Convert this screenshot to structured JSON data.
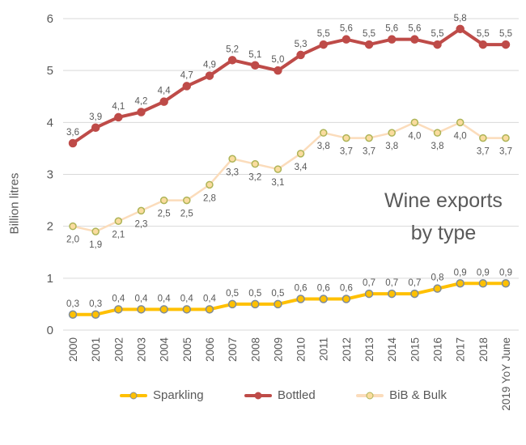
{
  "chart_data": {
    "type": "line",
    "title": "Wine exports by type",
    "title_lines": [
      "Wine exports",
      "by type"
    ],
    "ylabel": "Billion litres",
    "xlabel": "",
    "ylim": [
      0,
      6
    ],
    "yticks": [
      0,
      1,
      2,
      3,
      4,
      5,
      6
    ],
    "grid": "horizontal",
    "legend_position": "bottom",
    "decimal_separator": ",",
    "categories": [
      "2000",
      "2001",
      "2002",
      "2003",
      "2004",
      "2005",
      "2006",
      "2007",
      "2008",
      "2009",
      "2010",
      "2011",
      "2012",
      "2013",
      "2014",
      "2015",
      "2016",
      "2017",
      "2018",
      "2019 YoY June"
    ],
    "series": [
      {
        "name": "Sparkling",
        "color": "#FFC000",
        "marker_fill": "#FFC000",
        "marker_stroke": "#7F8C99",
        "line_width": 4,
        "marker_radius": 4.5,
        "label_position": "above",
        "values": [
          0.3,
          0.3,
          0.4,
          0.4,
          0.4,
          0.4,
          0.4,
          0.5,
          0.5,
          0.5,
          0.6,
          0.6,
          0.6,
          0.7,
          0.7,
          0.7,
          0.8,
          0.9,
          0.9,
          0.9
        ]
      },
      {
        "name": "Bottled",
        "color": "#BE4B48",
        "marker_fill": "#BE4B48",
        "marker_stroke": "#BE4B48",
        "line_width": 4,
        "marker_radius": 4.5,
        "label_position": "above",
        "values": [
          3.6,
          3.9,
          4.1,
          4.2,
          4.4,
          4.7,
          4.9,
          5.2,
          5.1,
          5.0,
          5.3,
          5.5,
          5.6,
          5.5,
          5.6,
          5.6,
          5.5,
          5.8,
          5.5,
          5.5
        ]
      },
      {
        "name": "BiB & Bulk",
        "color": "#FBDCBB",
        "marker_fill": "#FADC9E",
        "marker_stroke": "#ADB457",
        "line_width": 2.5,
        "marker_radius": 4,
        "label_position": "below",
        "values": [
          2.0,
          1.9,
          2.1,
          2.3,
          2.5,
          2.5,
          2.8,
          3.3,
          3.2,
          3.1,
          3.4,
          3.8,
          3.7,
          3.7,
          3.8,
          4.0,
          3.8,
          4.0,
          3.7,
          3.7
        ]
      }
    ],
    "colors": {
      "grid": "#D9D9D9",
      "text": "#595959",
      "label_text": "#595959"
    }
  }
}
